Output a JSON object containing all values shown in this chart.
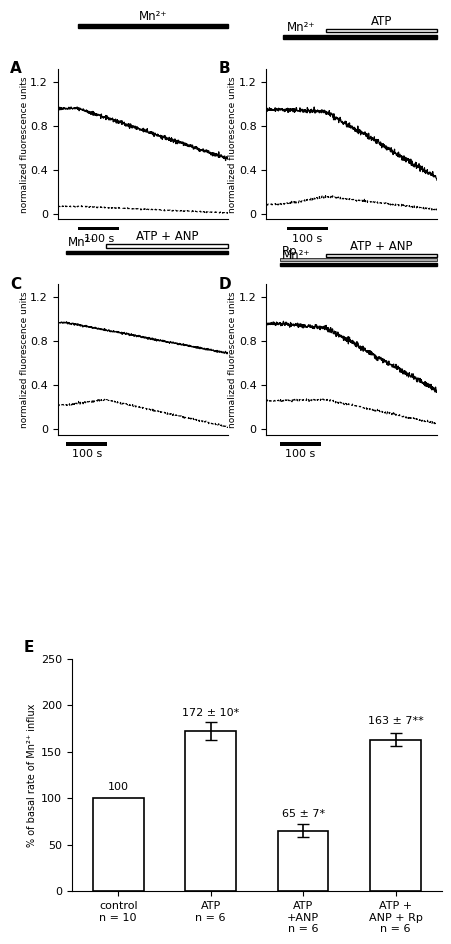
{
  "panels": [
    "A",
    "B",
    "C",
    "D"
  ],
  "bar_values": [
    100,
    172,
    65,
    163
  ],
  "bar_errors": [
    0,
    10,
    7,
    7
  ],
  "bar_annotations": [
    "100",
    "172 ± 10*",
    "65 ± 7*",
    "163 ± 7**"
  ],
  "bar_categories": [
    "control\nn = 10",
    "ATP\nn = 6",
    "ATP\n+ANP\nn = 6",
    "ATP +\nANP + Rp\nn = 6"
  ],
  "ylabel_bar": "% of basal rate of Mn²⁺ influx",
  "panel_label_fontsize": 11,
  "tick_fontsize": 8,
  "bar_annotation_fontsize": 8,
  "mn2_label": "Mn²⁺",
  "atp_label": "ATP",
  "atp_anp_label": "ATP + ANP",
  "rp_label": "Rp"
}
